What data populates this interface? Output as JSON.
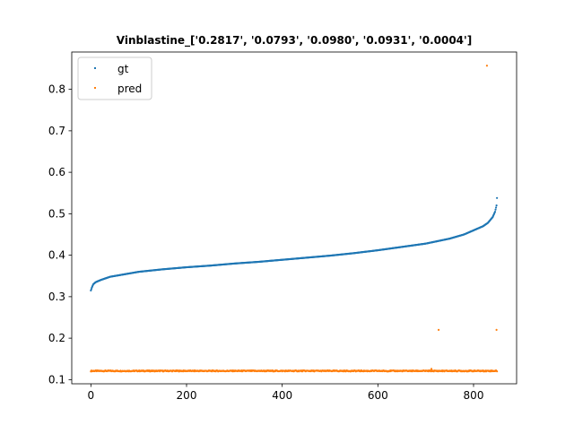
{
  "chart_data": {
    "type": "scatter",
    "title": "Vinblastine_['0.2817', '0.0793', '0.0980', '0.0931', '0.0004']",
    "xlabel": "",
    "ylabel": "",
    "xlim": [
      -40,
      890
    ],
    "ylim": [
      0.09,
      0.89
    ],
    "xticks": [
      0,
      200,
      400,
      600,
      800
    ],
    "yticks": [
      0.1,
      0.2,
      0.3,
      0.4,
      0.5,
      0.6,
      0.7,
      0.8
    ],
    "grid": false,
    "legend_position": "top-left",
    "n_points": 850,
    "series": [
      {
        "name": "gt",
        "color": "#1f77b4",
        "description": "sorted ascending ground-truth values",
        "curve": [
          [
            0,
            0.315
          ],
          [
            2,
            0.322
          ],
          [
            5,
            0.33
          ],
          [
            10,
            0.335
          ],
          [
            20,
            0.34
          ],
          [
            40,
            0.348
          ],
          [
            60,
            0.352
          ],
          [
            100,
            0.36
          ],
          [
            150,
            0.366
          ],
          [
            200,
            0.371
          ],
          [
            250,
            0.375
          ],
          [
            300,
            0.38
          ],
          [
            350,
            0.384
          ],
          [
            400,
            0.389
          ],
          [
            450,
            0.394
          ],
          [
            500,
            0.399
          ],
          [
            550,
            0.405
          ],
          [
            600,
            0.412
          ],
          [
            650,
            0.42
          ],
          [
            700,
            0.428
          ],
          [
            750,
            0.44
          ],
          [
            780,
            0.45
          ],
          [
            800,
            0.46
          ],
          [
            820,
            0.47
          ],
          [
            830,
            0.478
          ],
          [
            840,
            0.492
          ],
          [
            845,
            0.505
          ],
          [
            848,
            0.52
          ],
          [
            849,
            0.538
          ]
        ]
      },
      {
        "name": "pred",
        "color": "#ff7f0e",
        "description": "predictions, nearly constant",
        "base_value": 0.121,
        "outliers": [
          [
            712,
            0.126
          ],
          [
            727,
            0.22
          ],
          [
            828,
            0.857
          ],
          [
            848,
            0.22
          ]
        ]
      }
    ]
  }
}
